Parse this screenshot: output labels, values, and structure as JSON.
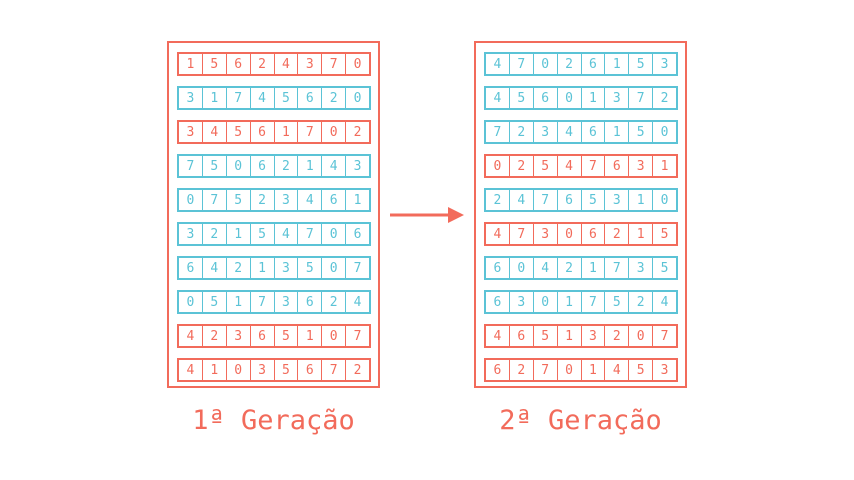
{
  "colors": {
    "selected": "#f26b5b",
    "normal": "#5bc3d6"
  },
  "generations": [
    {
      "label": "1ª Geração",
      "chromosomes": [
        {
          "genes": [
            "1",
            "5",
            "6",
            "2",
            "4",
            "3",
            "7",
            "0"
          ],
          "selected": true
        },
        {
          "genes": [
            "3",
            "1",
            "7",
            "4",
            "5",
            "6",
            "2",
            "0"
          ],
          "selected": false
        },
        {
          "genes": [
            "3",
            "4",
            "5",
            "6",
            "1",
            "7",
            "0",
            "2"
          ],
          "selected": true
        },
        {
          "genes": [
            "7",
            "5",
            "0",
            "6",
            "2",
            "1",
            "4",
            "3"
          ],
          "selected": false
        },
        {
          "genes": [
            "0",
            "7",
            "5",
            "2",
            "3",
            "4",
            "6",
            "1"
          ],
          "selected": false
        },
        {
          "genes": [
            "3",
            "2",
            "1",
            "5",
            "4",
            "7",
            "0",
            "6"
          ],
          "selected": false
        },
        {
          "genes": [
            "6",
            "4",
            "2",
            "1",
            "3",
            "5",
            "0",
            "7"
          ],
          "selected": false
        },
        {
          "genes": [
            "0",
            "5",
            "1",
            "7",
            "3",
            "6",
            "2",
            "4"
          ],
          "selected": false
        },
        {
          "genes": [
            "4",
            "2",
            "3",
            "6",
            "5",
            "1",
            "0",
            "7"
          ],
          "selected": true
        },
        {
          "genes": [
            "4",
            "1",
            "0",
            "3",
            "5",
            "6",
            "7",
            "2"
          ],
          "selected": true
        }
      ]
    },
    {
      "label": "2ª Geração",
      "chromosomes": [
        {
          "genes": [
            "4",
            "7",
            "0",
            "2",
            "6",
            "1",
            "5",
            "3"
          ],
          "selected": false
        },
        {
          "genes": [
            "4",
            "5",
            "6",
            "0",
            "1",
            "3",
            "7",
            "2"
          ],
          "selected": false
        },
        {
          "genes": [
            "7",
            "2",
            "3",
            "4",
            "6",
            "1",
            "5",
            "0"
          ],
          "selected": false
        },
        {
          "genes": [
            "0",
            "2",
            "5",
            "4",
            "7",
            "6",
            "3",
            "1"
          ],
          "selected": true
        },
        {
          "genes": [
            "2",
            "4",
            "7",
            "6",
            "5",
            "3",
            "1",
            "0"
          ],
          "selected": false
        },
        {
          "genes": [
            "4",
            "7",
            "3",
            "0",
            "6",
            "2",
            "1",
            "5"
          ],
          "selected": true
        },
        {
          "genes": [
            "6",
            "0",
            "4",
            "2",
            "1",
            "7",
            "3",
            "5"
          ],
          "selected": false
        },
        {
          "genes": [
            "6",
            "3",
            "0",
            "1",
            "7",
            "5",
            "2",
            "4"
          ],
          "selected": false
        },
        {
          "genes": [
            "4",
            "6",
            "5",
            "1",
            "3",
            "2",
            "0",
            "7"
          ],
          "selected": true
        },
        {
          "genes": [
            "6",
            "2",
            "7",
            "0",
            "1",
            "4",
            "5",
            "3"
          ],
          "selected": true
        }
      ]
    }
  ]
}
